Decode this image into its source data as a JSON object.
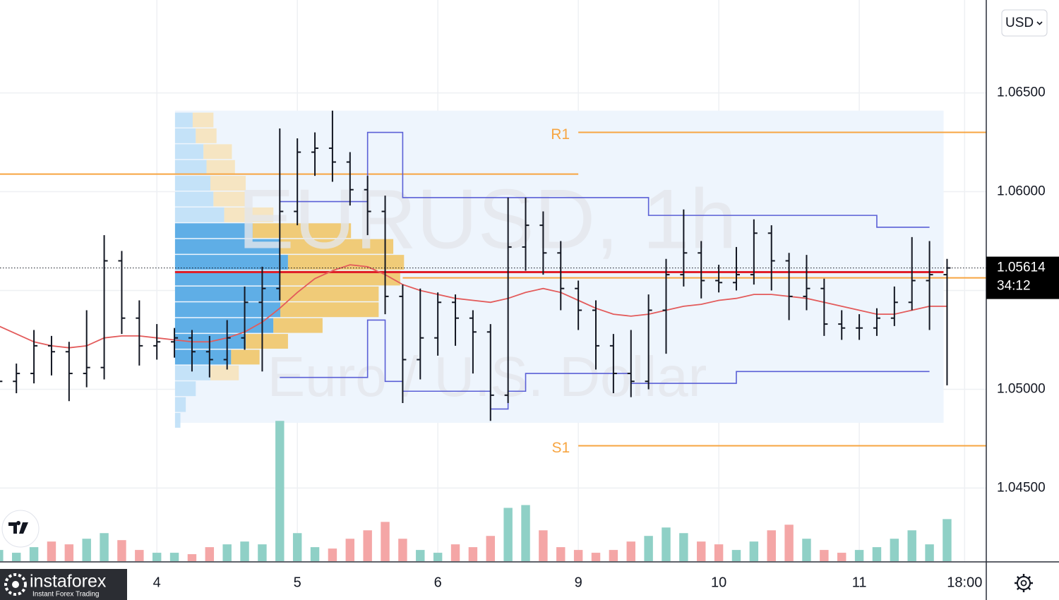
{
  "chart_data": {
    "type": "ohlc",
    "title": "EURUSD, 1h",
    "subtitle": "Euro / U.S. Dollar",
    "currency": "USD",
    "x": [
      -27,
      -24,
      -21,
      -18,
      -15,
      -12,
      -9,
      -6,
      -3,
      0,
      3,
      6,
      9,
      12,
      15,
      18,
      21,
      24,
      27,
      30,
      33,
      36,
      39,
      42,
      45,
      48,
      51,
      54,
      57,
      60,
      63,
      66,
      69,
      72,
      75,
      78,
      81,
      84,
      87,
      90,
      93,
      96,
      99,
      102,
      105,
      108,
      111,
      114,
      117,
      120,
      123,
      126,
      129,
      132,
      135
    ],
    "open": [
      1.05,
      1.0504,
      1.0508,
      1.0522,
      1.0519,
      1.0508,
      1.0511,
      1.0565,
      1.0536,
      1.0522,
      1.0524,
      1.0526,
      1.0519,
      1.0515,
      1.0526,
      1.0544,
      1.0551,
      1.059,
      1.062,
      1.0622,
      1.0615,
      1.0601,
      1.059,
      1.0547,
      1.0515,
      1.0526,
      1.0544,
      1.0536,
      1.0529,
      1.0497,
      1.0572,
      1.0583,
      1.0569,
      1.0551,
      1.054,
      1.0522,
      1.0508,
      1.0504,
      1.054,
      1.0558,
      1.0569,
      1.0555,
      1.0554,
      1.0558,
      1.0579,
      1.0565,
      1.0547,
      1.0551,
      1.0533,
      1.0531,
      1.0531,
      1.0536,
      1.0544,
      1.0555,
      1.0558
    ],
    "high": [
      1.0512,
      1.0513,
      1.053,
      1.0527,
      1.0524,
      1.054,
      1.0578,
      1.057,
      1.0545,
      1.0533,
      1.0531,
      1.053,
      1.0527,
      1.0535,
      1.0552,
      1.0562,
      1.0632,
      1.0627,
      1.063,
      1.0641,
      1.062,
      1.0608,
      1.0598,
      1.0553,
      1.0551,
      1.0549,
      1.0548,
      1.054,
      1.0533,
      1.0597,
      1.0597,
      1.059,
      1.0575,
      1.0555,
      1.0545,
      1.0528,
      1.053,
      1.0548,
      1.0566,
      1.0591,
      1.0575,
      1.0563,
      1.0572,
      1.0586,
      1.0583,
      1.0569,
      1.0568,
      1.0556,
      1.054,
      1.0538,
      1.0541,
      1.0552,
      1.0577,
      1.0575,
      1.0566
    ],
    "low": [
      1.0493,
      1.0498,
      1.0503,
      1.0507,
      1.0494,
      1.0501,
      1.0505,
      1.0528,
      1.0512,
      1.0515,
      1.0516,
      1.0509,
      1.0506,
      1.051,
      1.052,
      1.0509,
      1.0545,
      1.0583,
      1.0608,
      1.0605,
      1.0593,
      1.0578,
      1.0538,
      1.0493,
      1.0505,
      1.0517,
      1.0522,
      1.0508,
      1.0484,
      1.0493,
      1.056,
      1.0558,
      1.054,
      1.053,
      1.051,
      1.0498,
      1.0496,
      1.05,
      1.0518,
      1.0552,
      1.0546,
      1.0549,
      1.055,
      1.0553,
      1.055,
      1.0535,
      1.054,
      1.0527,
      1.0525,
      1.0525,
      1.0527,
      1.0532,
      1.054,
      1.053,
      1.0502
    ],
    "close": [
      1.0504,
      1.0508,
      1.0522,
      1.0519,
      1.0508,
      1.0511,
      1.0565,
      1.0536,
      1.0522,
      1.0524,
      1.0526,
      1.0519,
      1.0515,
      1.0526,
      1.0544,
      1.0551,
      1.059,
      1.062,
      1.0622,
      1.0615,
      1.0601,
      1.059,
      1.0547,
      1.0515,
      1.0526,
      1.0544,
      1.0536,
      1.0529,
      1.0497,
      1.0572,
      1.0583,
      1.0569,
      1.0551,
      1.054,
      1.0522,
      1.0508,
      1.0504,
      1.054,
      1.0558,
      1.0569,
      1.0555,
      1.0554,
      1.0558,
      1.0579,
      1.0565,
      1.0547,
      1.0551,
      1.0533,
      1.0531,
      1.0531,
      1.0536,
      1.0544,
      1.0555,
      1.0558,
      1.05614
    ],
    "volume": [
      8,
      6,
      10,
      14,
      12,
      16,
      20,
      15,
      8,
      6,
      6,
      5,
      10,
      12,
      14,
      12,
      100,
      20,
      10,
      9,
      16,
      22,
      28,
      16,
      8,
      6,
      12,
      10,
      18,
      38,
      40,
      22,
      10,
      8,
      6,
      8,
      14,
      18,
      24,
      20,
      14,
      12,
      8,
      14,
      22,
      26,
      16,
      8,
      6,
      8,
      10,
      16,
      22,
      12,
      30
    ],
    "vlim": [
      0,
      400
    ],
    "ma": [
      1.0532,
      1.0528,
      1.0524,
      1.0522,
      1.0521,
      1.0522,
      1.0526,
      1.0527,
      1.0527,
      1.0526,
      1.0525,
      1.0524,
      1.0524,
      1.0526,
      1.0529,
      1.0534,
      1.0541,
      1.0549,
      1.0556,
      1.056,
      1.0563,
      1.0562,
      1.0558,
      1.0553,
      1.055,
      1.0548,
      1.0546,
      1.0545,
      1.0544,
      1.0546,
      1.0549,
      1.0551,
      1.0549,
      1.0545,
      1.0541,
      1.0538,
      1.0537,
      1.0538,
      1.054,
      1.0542,
      1.0543,
      1.0545,
      1.0546,
      1.0548,
      1.0548,
      1.0547,
      1.0546,
      1.0544,
      1.0542,
      1.054,
      1.0538,
      1.0538,
      1.054,
      1.0542,
      1.0542
    ],
    "upper_band": [
      null,
      null,
      null,
      null,
      null,
      null,
      null,
      null,
      null,
      null,
      null,
      null,
      null,
      null,
      null,
      null,
      1.0595,
      1.0595,
      1.0595,
      1.0595,
      1.0595,
      1.063,
      1.063,
      1.0597,
      1.0597,
      1.0597,
      1.0597,
      1.0597,
      1.0597,
      1.0597,
      1.0597,
      1.0597,
      1.0597,
      1.0597,
      1.0597,
      1.0597,
      1.0597,
      1.0588,
      1.0588,
      1.0588,
      1.0588,
      1.0588,
      1.0588,
      1.0588,
      1.0588,
      1.0588,
      1.0588,
      1.0588,
      1.0588,
      1.0588,
      1.0582,
      1.0582,
      1.0582,
      1.0582,
      null
    ],
    "lower_band": [
      null,
      null,
      null,
      null,
      null,
      null,
      null,
      null,
      null,
      null,
      null,
      null,
      null,
      null,
      null,
      null,
      1.0506,
      1.0506,
      1.0506,
      1.0506,
      1.0506,
      1.0535,
      1.0504,
      1.0499,
      1.0499,
      1.0499,
      1.0499,
      1.0499,
      1.049,
      1.0499,
      1.0508,
      1.0508,
      1.0508,
      1.0508,
      1.0508,
      1.0508,
      1.0503,
      1.0503,
      1.0503,
      1.0503,
      1.0503,
      1.0503,
      1.0509,
      1.0509,
      1.0509,
      1.0509,
      1.0509,
      1.0509,
      1.0509,
      1.0509,
      1.0509,
      1.0509,
      1.0509,
      1.0509,
      null
    ],
    "profile": {
      "range_x": [
        3.1,
        134.4
      ],
      "range_y": [
        1.0483,
        1.0641
      ],
      "levels": [
        1.0636,
        1.0628,
        1.062,
        1.0612,
        1.0604,
        1.0596,
        1.0588,
        1.058,
        1.0572,
        1.0564,
        1.0556,
        1.0548,
        1.054,
        1.0532,
        1.0524,
        1.0516,
        1.0508,
        1.05,
        1.0492,
        1.0484
      ],
      "buy": [
        2.3,
        2.7,
        3.7,
        4.1,
        4.6,
        5.0,
        6.4,
        10.1,
        13.7,
        14.7,
        13.7,
        13.7,
        13.7,
        12.8,
        9.2,
        7.3,
        4.6,
        2.7,
        1.4,
        0.7
      ],
      "sell": [
        2.7,
        2.7,
        3.7,
        3.7,
        4.6,
        4.1,
        6.4,
        12.8,
        14.7,
        15.1,
        15.6,
        12.8,
        12.8,
        6.4,
        5.5,
        3.7,
        3.7,
        0,
        0,
        0
      ],
      "value_area": [
        1.0516,
        1.058
      ],
      "poc": 1.05593,
      "poc_x": [
        3.1,
        134.4
      ]
    },
    "levels": [
      {
        "label": "R1",
        "value": 1.063,
        "x": [
          72,
          141.7
        ]
      },
      {
        "value": 1.06089,
        "x": [
          -26.8,
          72
        ]
      },
      {
        "value": 1.05564,
        "x": [
          42,
          141.7
        ]
      },
      {
        "label": "S1",
        "value": 1.04714,
        "x": [
          72,
          141.7
        ]
      }
    ],
    "last_price": 1.05614,
    "countdown": "34:12",
    "xlim": [
      -26.8,
      141.7
    ],
    "xticks": [
      {
        "value": 0,
        "label": "4"
      },
      {
        "value": 24,
        "label": "5"
      },
      {
        "value": 48,
        "label": "6"
      },
      {
        "value": 72,
        "label": "9"
      },
      {
        "value": 96,
        "label": "10"
      },
      {
        "value": 120,
        "label": "11"
      },
      {
        "value": 138,
        "label": "18:00"
      }
    ],
    "ylim": [
      1.0413,
      1.0697
    ],
    "yticks": [
      {
        "value": 1.045,
        "label": "1.04500"
      },
      {
        "value": 1.05,
        "label": "1.05000"
      },
      {
        "value": 1.055,
        "label": "1.05500"
      },
      {
        "value": 1.06,
        "label": "1.06000"
      },
      {
        "value": 1.065,
        "label": "1.06500"
      }
    ],
    "grid": true,
    "colors": {
      "bar": "#131722",
      "up_volume": "#8fd0c6",
      "down_volume": "#f4a6a6",
      "ma": "#e35b5b",
      "band": "#5a5fd6",
      "level": "#f7a541",
      "poc": "#e0202a",
      "profile_buy": "#bfe0f7",
      "profile_buy_va": "#4fa6e3",
      "profile_sell": "#f6e3bb",
      "profile_sell_va": "#f0c669",
      "range": "#eef5fd"
    },
    "brand": {
      "name": "instaforex",
      "tagline": "Instant Forex Trading"
    }
  }
}
